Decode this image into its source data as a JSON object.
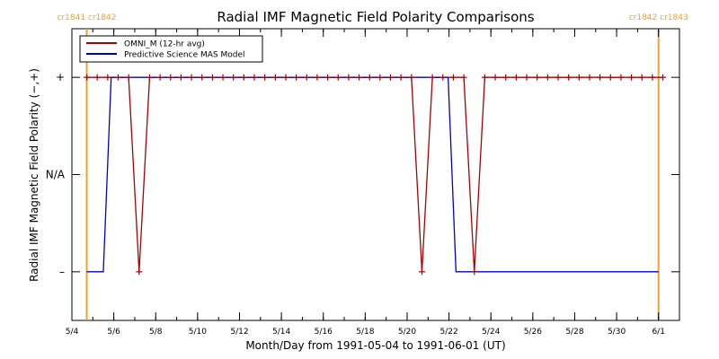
{
  "chart_data": {
    "type": "line",
    "title": "Radial IMF Magnetic Field Polarity Comparisons",
    "xlabel": "Month/Day from 1991-05-04 to 1991-06-01 (UT)",
    "ylabel": "Radial IMF Magnetic Field Polarity (−,+)",
    "x_unit": "days",
    "xlim": [
      "1991-05-04",
      "1991-06-02"
    ],
    "ylim": [
      -1.5,
      1.5
    ],
    "x_ticks": [
      {
        "x": "1991-05-04",
        "label": "5/4"
      },
      {
        "x": "1991-05-06",
        "label": "5/6"
      },
      {
        "x": "1991-05-08",
        "label": "5/8"
      },
      {
        "x": "1991-05-10",
        "label": "5/10"
      },
      {
        "x": "1991-05-12",
        "label": "5/12"
      },
      {
        "x": "1991-05-14",
        "label": "5/14"
      },
      {
        "x": "1991-05-16",
        "label": "5/16"
      },
      {
        "x": "1991-05-18",
        "label": "5/18"
      },
      {
        "x": "1991-05-20",
        "label": "5/20"
      },
      {
        "x": "1991-05-22",
        "label": "5/22"
      },
      {
        "x": "1991-05-24",
        "label": "5/24"
      },
      {
        "x": "1991-05-26",
        "label": "5/26"
      },
      {
        "x": "1991-05-28",
        "label": "5/28"
      },
      {
        "x": "1991-05-30",
        "label": "5/30"
      },
      {
        "x": "1991-06-01",
        "label": "6/1"
      }
    ],
    "y_ticks": [
      {
        "y": 1,
        "label": "+"
      },
      {
        "y": 0,
        "label": "N/A"
      },
      {
        "y": -1,
        "label": "–"
      }
    ],
    "carrington_markers": [
      {
        "x": "1991-05-04T17:00",
        "label": "cr1841 cr1842"
      },
      {
        "x": "1991-06-01T00:00",
        "label": "cr1842 cr1843"
      }
    ],
    "series": [
      {
        "name": "OMNI_M (12-hr avg)",
        "color": "#aa0000",
        "marker": "+",
        "points": [
          [
            "1991-05-04T17:00",
            1
          ],
          [
            "1991-05-05T05:00",
            1
          ],
          [
            "1991-05-05T17:00",
            1
          ],
          [
            "1991-05-06T05:00",
            1
          ],
          [
            "1991-05-06T17:00",
            1
          ],
          [
            "1991-05-07T05:00",
            -1
          ],
          [
            "1991-05-07T17:00",
            1
          ],
          [
            "1991-05-08T05:00",
            1
          ],
          [
            "1991-05-08T17:00",
            1
          ],
          [
            "1991-05-09T05:00",
            1
          ],
          [
            "1991-05-09T17:00",
            1
          ],
          [
            "1991-05-10T05:00",
            1
          ],
          [
            "1991-05-10T17:00",
            1
          ],
          [
            "1991-05-11T05:00",
            1
          ],
          [
            "1991-05-11T17:00",
            1
          ],
          [
            "1991-05-12T05:00",
            1
          ],
          [
            "1991-05-12T17:00",
            1
          ],
          [
            "1991-05-13T05:00",
            1
          ],
          [
            "1991-05-13T17:00",
            1
          ],
          [
            "1991-05-14T05:00",
            1
          ],
          [
            "1991-05-14T17:00",
            1
          ],
          [
            "1991-05-15T05:00",
            1
          ],
          [
            "1991-05-15T17:00",
            1
          ],
          [
            "1991-05-16T05:00",
            1
          ],
          [
            "1991-05-16T17:00",
            1
          ],
          [
            "1991-05-17T05:00",
            1
          ],
          [
            "1991-05-17T17:00",
            1
          ],
          [
            "1991-05-18T05:00",
            1
          ],
          [
            "1991-05-18T17:00",
            1
          ],
          [
            "1991-05-19T05:00",
            1
          ],
          [
            "1991-05-19T17:00",
            1
          ],
          [
            "1991-05-20T05:00",
            1
          ],
          [
            "1991-05-20T17:00",
            -1
          ],
          [
            "1991-05-21T05:00",
            1
          ],
          [
            "1991-05-21T17:00",
            1
          ],
          [
            "1991-05-22T05:00",
            1
          ],
          [
            "1991-05-22T17:00",
            1
          ],
          [
            "1991-05-23T05:00",
            -1
          ],
          [
            "1991-05-23T17:00",
            1
          ],
          [
            "1991-05-24T05:00",
            1
          ],
          [
            "1991-05-24T17:00",
            1
          ],
          [
            "1991-05-25T05:00",
            1
          ],
          [
            "1991-05-25T17:00",
            1
          ],
          [
            "1991-05-26T05:00",
            1
          ],
          [
            "1991-05-26T17:00",
            1
          ],
          [
            "1991-05-27T05:00",
            1
          ],
          [
            "1991-05-27T17:00",
            1
          ],
          [
            "1991-05-28T05:00",
            1
          ],
          [
            "1991-05-28T17:00",
            1
          ],
          [
            "1991-05-29T05:00",
            1
          ],
          [
            "1991-05-29T17:00",
            1
          ],
          [
            "1991-05-30T05:00",
            1
          ],
          [
            "1991-05-30T17:00",
            1
          ],
          [
            "1991-05-31T05:00",
            1
          ],
          [
            "1991-05-31T17:00",
            1
          ],
          [
            "1991-06-01T05:00",
            1
          ]
        ]
      },
      {
        "name": "Predictive Science MAS Model",
        "color": "#0000cc",
        "marker": "",
        "points": [
          [
            "1991-05-04T17:00",
            -1
          ],
          [
            "1991-05-05T12:00",
            -1
          ],
          [
            "1991-05-05T21:00",
            1
          ],
          [
            "1991-05-21T23:00",
            1
          ],
          [
            "1991-05-22T08:00",
            -1
          ],
          [
            "1991-06-01T00:00",
            -1
          ]
        ]
      }
    ],
    "legend_position": "top-left",
    "grid": false
  }
}
